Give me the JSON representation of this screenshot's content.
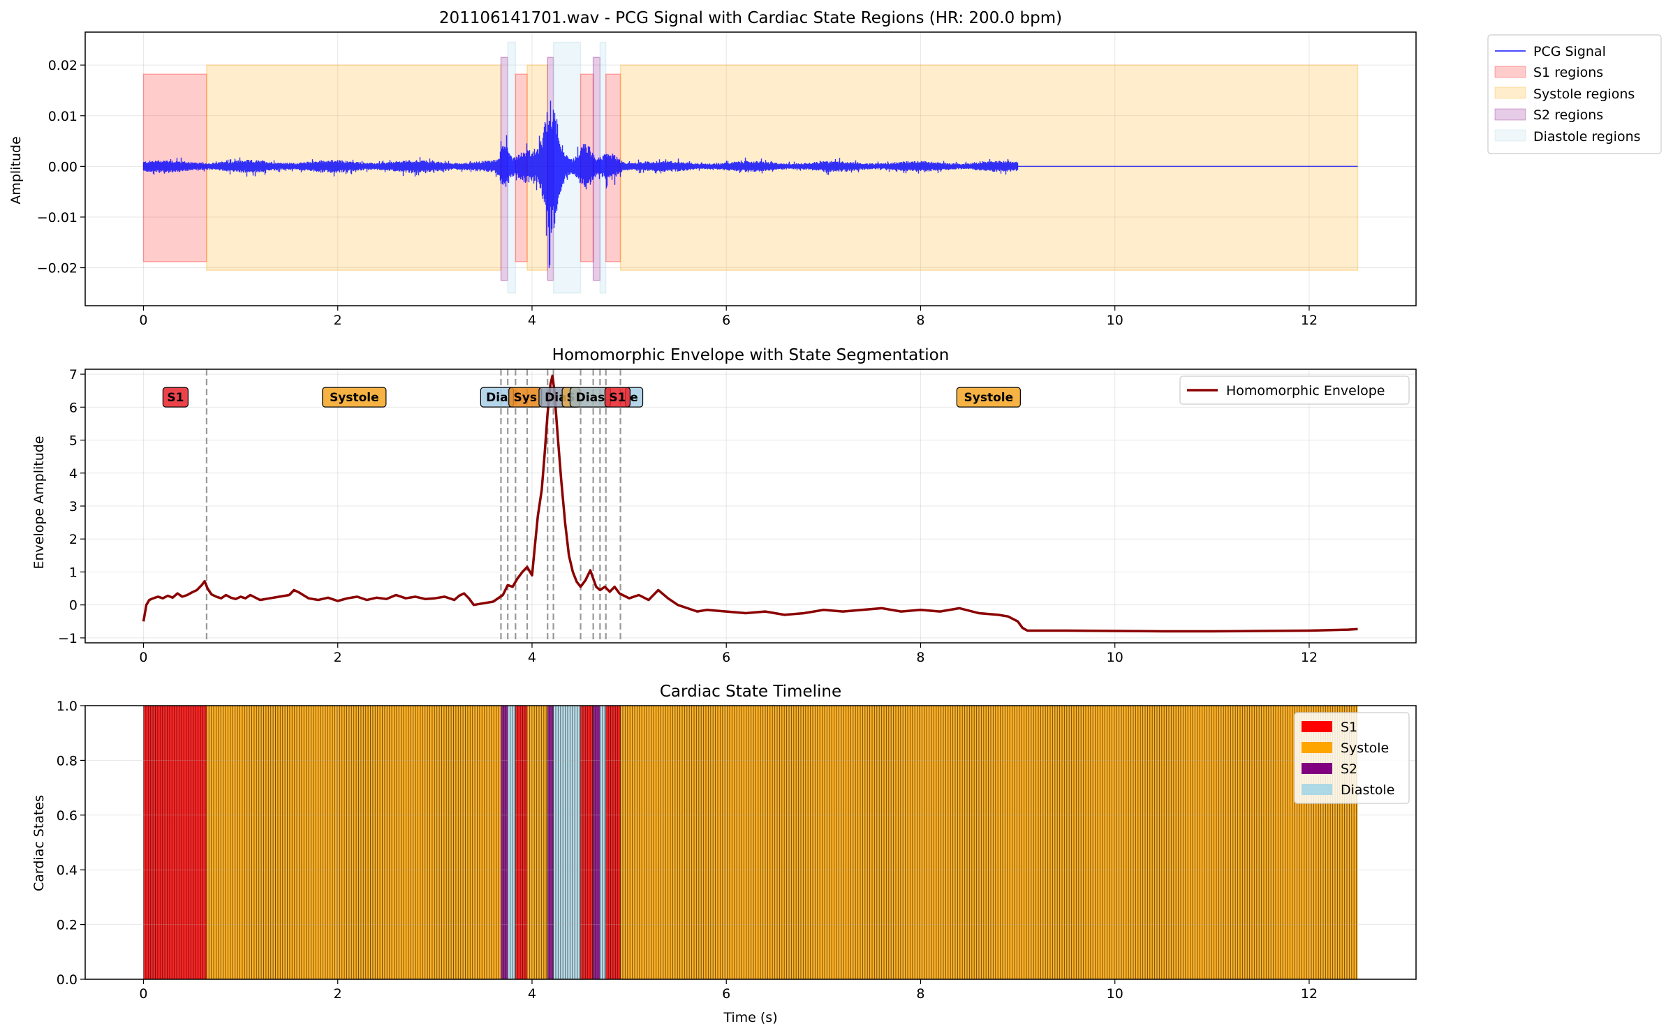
{
  "figure": {
    "xlabel": "Time (s)"
  },
  "chart_data": [
    {
      "type": "line",
      "title": "201106141701.wav - PCG Signal with Cardiac State Regions (HR: 200.0 bpm)",
      "xlabel": "",
      "ylabel": "Amplitude",
      "xlim": [
        -0.6,
        13.1
      ],
      "ylim": [
        -0.0275,
        0.0265
      ],
      "xticks": [
        "0",
        "2",
        "4",
        "6",
        "8",
        "10",
        "12"
      ],
      "yticks": [
        "−0.02",
        "−0.01",
        "0.00",
        "0.01",
        "0.02"
      ],
      "grid": true,
      "legend_position": "outside-top-right",
      "legend": [
        "PCG Signal",
        "S1 regions",
        "Systole regions",
        "S2 regions",
        "Diastole regions"
      ],
      "series_color": "#0000ff",
      "signal_end_s": 9.0,
      "x_end_s": 12.5,
      "regions": [
        {
          "state": "S1",
          "x0": 0.0,
          "x1": 0.65,
          "y0": -0.0188,
          "y1": 0.0182
        },
        {
          "state": "Systole",
          "x0": 0.65,
          "x1": 3.68,
          "y0": -0.0205,
          "y1": 0.02
        },
        {
          "state": "S2",
          "x0": 3.68,
          "x1": 3.75,
          "y0": -0.0225,
          "y1": 0.0215
        },
        {
          "state": "Diastole",
          "x0": 3.75,
          "x1": 3.83,
          "y0": -0.025,
          "y1": 0.0245
        },
        {
          "state": "S1",
          "x0": 3.83,
          "x1": 3.95,
          "y0": -0.0188,
          "y1": 0.0182
        },
        {
          "state": "Systole",
          "x0": 3.95,
          "x1": 4.16,
          "y0": -0.0205,
          "y1": 0.02
        },
        {
          "state": "S2",
          "x0": 4.16,
          "x1": 4.22,
          "y0": -0.0225,
          "y1": 0.0215
        },
        {
          "state": "Diastole",
          "x0": 4.22,
          "x1": 4.5,
          "y0": -0.025,
          "y1": 0.0245
        },
        {
          "state": "S1",
          "x0": 4.5,
          "x1": 4.63,
          "y0": -0.0188,
          "y1": 0.0182
        },
        {
          "state": "S2",
          "x0": 4.63,
          "x1": 4.7,
          "y0": -0.0225,
          "y1": 0.0215
        },
        {
          "state": "Diastole",
          "x0": 4.7,
          "x1": 4.76,
          "y0": -0.025,
          "y1": 0.0245
        },
        {
          "state": "S1",
          "x0": 4.76,
          "x1": 4.91,
          "y0": -0.0188,
          "y1": 0.0182
        },
        {
          "state": "Systole",
          "x0": 4.91,
          "x1": 12.5,
          "y0": -0.0205,
          "y1": 0.02
        }
      ]
    },
    {
      "type": "line",
      "title": "Homomorphic Envelope with State Segmentation",
      "xlabel": "",
      "ylabel": "Envelope Amplitude",
      "xlim": [
        -0.6,
        13.1
      ],
      "ylim": [
        -1.15,
        7.15
      ],
      "xticks": [
        "0",
        "2",
        "4",
        "6",
        "8",
        "10",
        "12"
      ],
      "yticks": [
        "−1",
        "0",
        "1",
        "2",
        "3",
        "4",
        "5",
        "6",
        "7"
      ],
      "grid": true,
      "legend_position": "top-right",
      "series": [
        {
          "name": "Homomorphic Envelope",
          "color": "#8b0000",
          "x": [
            0,
            0.03,
            0.06,
            0.1,
            0.15,
            0.2,
            0.25,
            0.3,
            0.35,
            0.4,
            0.45,
            0.5,
            0.55,
            0.6,
            0.63,
            0.66,
            0.7,
            0.75,
            0.8,
            0.85,
            0.9,
            0.95,
            1.0,
            1.05,
            1.1,
            1.2,
            1.3,
            1.4,
            1.5,
            1.55,
            1.6,
            1.7,
            1.8,
            1.9,
            2.0,
            2.1,
            2.2,
            2.3,
            2.4,
            2.5,
            2.6,
            2.7,
            2.8,
            2.9,
            3.0,
            3.1,
            3.2,
            3.25,
            3.3,
            3.35,
            3.4,
            3.5,
            3.6,
            3.7,
            3.75,
            3.8,
            3.85,
            3.9,
            3.95,
            4.0,
            4.03,
            4.06,
            4.1,
            4.13,
            4.16,
            4.19,
            4.21,
            4.23,
            4.26,
            4.3,
            4.34,
            4.38,
            4.42,
            4.46,
            4.5,
            4.55,
            4.6,
            4.63,
            4.66,
            4.7,
            4.75,
            4.8,
            4.85,
            4.9,
            5.0,
            5.1,
            5.2,
            5.3,
            5.4,
            5.5,
            5.6,
            5.7,
            5.8,
            6.0,
            6.2,
            6.4,
            6.6,
            6.8,
            7.0,
            7.2,
            7.4,
            7.6,
            7.8,
            8.0,
            8.2,
            8.4,
            8.6,
            8.8,
            8.9,
            9.0,
            9.05,
            9.1,
            9.5,
            10.0,
            10.5,
            11.0,
            11.5,
            12.0,
            12.4,
            12.5
          ],
          "values": [
            -0.5,
            0.0,
            0.15,
            0.2,
            0.25,
            0.2,
            0.28,
            0.22,
            0.35,
            0.25,
            0.3,
            0.38,
            0.45,
            0.6,
            0.72,
            0.5,
            0.32,
            0.25,
            0.2,
            0.3,
            0.22,
            0.18,
            0.25,
            0.2,
            0.3,
            0.15,
            0.2,
            0.25,
            0.3,
            0.45,
            0.38,
            0.2,
            0.15,
            0.22,
            0.12,
            0.2,
            0.25,
            0.15,
            0.22,
            0.18,
            0.3,
            0.2,
            0.25,
            0.18,
            0.2,
            0.25,
            0.15,
            0.28,
            0.35,
            0.2,
            0.0,
            0.05,
            0.1,
            0.3,
            0.6,
            0.55,
            0.8,
            1.0,
            1.15,
            0.9,
            1.8,
            2.7,
            3.5,
            4.6,
            5.8,
            6.7,
            6.95,
            6.5,
            5.3,
            3.8,
            2.5,
            1.5,
            1.0,
            0.7,
            0.55,
            0.75,
            1.05,
            0.8,
            0.55,
            0.45,
            0.55,
            0.4,
            0.55,
            0.35,
            0.2,
            0.3,
            0.15,
            0.45,
            0.2,
            0.0,
            -0.1,
            -0.2,
            -0.15,
            -0.2,
            -0.25,
            -0.2,
            -0.3,
            -0.25,
            -0.15,
            -0.2,
            -0.15,
            -0.1,
            -0.2,
            -0.15,
            -0.2,
            -0.1,
            -0.25,
            -0.3,
            -0.35,
            -0.5,
            -0.7,
            -0.78,
            -0.78,
            -0.79,
            -0.8,
            -0.8,
            -0.79,
            -0.78,
            -0.75,
            -0.73
          ]
        }
      ],
      "boundaries": [
        0.65,
        3.68,
        3.75,
        3.83,
        3.95,
        4.16,
        4.22,
        4.5,
        4.63,
        4.7,
        4.76,
        4.91
      ],
      "state_labels": [
        {
          "text": "S1",
          "x": 0.33,
          "y": 6.3,
          "color": "#e8222a"
        },
        {
          "text": "Systole",
          "x": 2.17,
          "y": 6.3,
          "color": "#f5a623"
        },
        {
          "text": "Dia",
          "x": 3.64,
          "y": 6.3,
          "color": "#a8cfe6"
        },
        {
          "text": "Sys",
          "x": 3.93,
          "y": 6.3,
          "color": "#e8851a"
        },
        {
          "text": "Dias",
          "x": 4.28,
          "y": 6.3,
          "color": "#8f9cb0"
        },
        {
          "text": "S",
          "x": 4.4,
          "y": 6.3,
          "color": "#e0aa50"
        },
        {
          "text": "Dias",
          "x": 4.6,
          "y": 6.3,
          "color": "#a3b5b8"
        },
        {
          "text": "e",
          "x": 5.05,
          "y": 6.3,
          "color": "#a8cfe6"
        },
        {
          "text": "S1",
          "x": 4.88,
          "y": 6.3,
          "color": "#e8222a"
        },
        {
          "text": "Systole",
          "x": 8.7,
          "y": 6.3,
          "color": "#f5a623"
        }
      ]
    },
    {
      "type": "bar",
      "title": "Cardiac State Timeline",
      "xlabel": "Time (s)",
      "ylabel": "Cardiac States",
      "xlim": [
        -0.6,
        13.1
      ],
      "ylim": [
        0,
        1
      ],
      "xticks": [
        "0",
        "2",
        "4",
        "6",
        "8",
        "10",
        "12"
      ],
      "yticks": [
        "0.0",
        "0.2",
        "0.4",
        "0.6",
        "0.8",
        "1.0"
      ],
      "grid": true,
      "legend_position": "top-right",
      "legend": [
        "S1",
        "Systole",
        "S2",
        "Diastole"
      ],
      "segments": [
        {
          "state": "S1",
          "x0": 0.0,
          "x1": 0.65
        },
        {
          "state": "Systole",
          "x0": 0.65,
          "x1": 3.68
        },
        {
          "state": "S2",
          "x0": 3.68,
          "x1": 3.75
        },
        {
          "state": "Diastole",
          "x0": 3.75,
          "x1": 3.83
        },
        {
          "state": "S1",
          "x0": 3.83,
          "x1": 3.95
        },
        {
          "state": "Systole",
          "x0": 3.95,
          "x1": 4.16
        },
        {
          "state": "S2",
          "x0": 4.16,
          "x1": 4.22
        },
        {
          "state": "Diastole",
          "x0": 4.22,
          "x1": 4.5
        },
        {
          "state": "S1",
          "x0": 4.5,
          "x1": 4.63
        },
        {
          "state": "S2",
          "x0": 4.63,
          "x1": 4.7
        },
        {
          "state": "Diastole",
          "x0": 4.7,
          "x1": 4.76
        },
        {
          "state": "S1",
          "x0": 4.76,
          "x1": 4.91
        },
        {
          "state": "Systole",
          "x0": 4.91,
          "x1": 12.5
        }
      ]
    }
  ],
  "colors": {
    "S1": "#ff0000",
    "Systole": "#ffa500",
    "S2": "#800080",
    "Diastole": "#add8e6",
    "pcg": "#0000ff",
    "envelope": "#8b0000",
    "grid": "#b0b0b0"
  }
}
